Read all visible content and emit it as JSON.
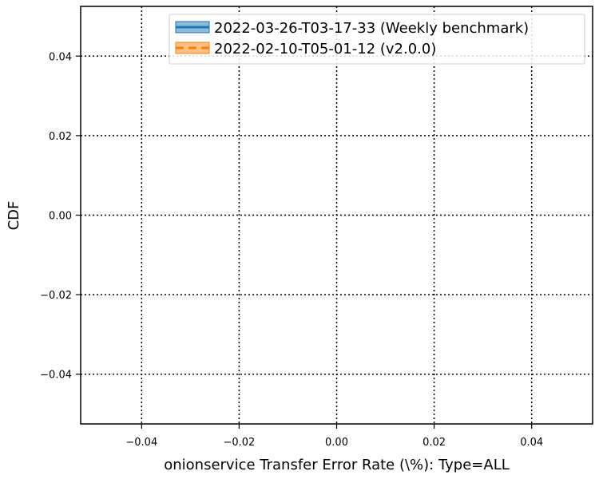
{
  "chart_data": {
    "type": "line",
    "title": "",
    "xlabel": "onionservice Transfer Error Rate (\\%): Type=ALL",
    "ylabel": "CDF",
    "xlim": [
      -0.0525,
      0.0525
    ],
    "ylim": [
      -0.0525,
      0.0525
    ],
    "x_ticks": [
      -0.04,
      -0.02,
      0.0,
      0.02,
      0.04
    ],
    "y_ticks": [
      -0.04,
      -0.02,
      0.0,
      0.02,
      0.04
    ],
    "x_tick_labels": [
      "−0.04",
      "−0.02",
      "0.00",
      "0.02",
      "0.04"
    ],
    "y_tick_labels": [
      "−0.04",
      "−0.02",
      "0.00",
      "0.02",
      "0.04"
    ],
    "grid": true,
    "legend_position": "top-right",
    "series": [
      {
        "name": "2022-03-26-T03-17-33 (Weekly benchmark)",
        "color": "#1f77b4",
        "line_style": "solid",
        "x": [],
        "y": []
      },
      {
        "name": "2022-02-10-T05-01-12 (v2.0.0)",
        "color": "#ff7f0e",
        "line_style": "dashed",
        "x": [],
        "y": []
      }
    ]
  }
}
